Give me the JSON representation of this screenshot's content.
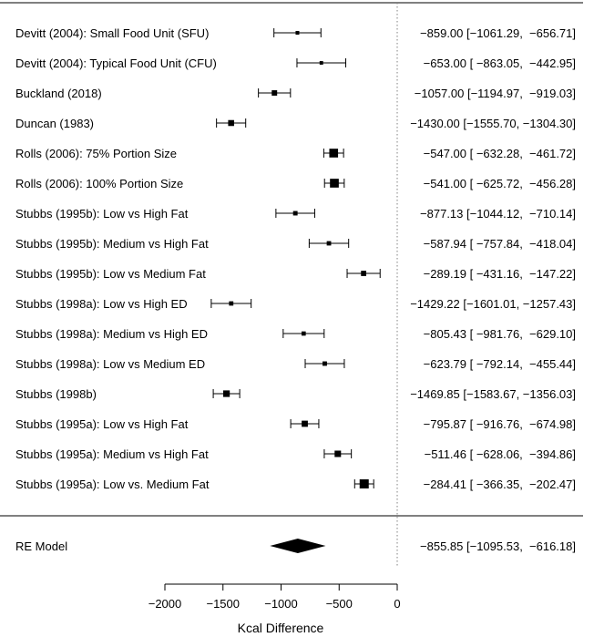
{
  "chart_data": {
    "type": "forest",
    "xlabel": "Kcal Difference",
    "xlim": [
      -2000,
      0
    ],
    "xticks": [
      -2000,
      -1500,
      -1000,
      -500,
      0
    ],
    "xtick_labels": [
      "−2000",
      "−1500",
      "−1000",
      "−500",
      "0"
    ],
    "reference_line": 0,
    "studies": [
      {
        "label": "Devitt (2004): Small Food Unit (SFU)",
        "est": -859.0,
        "lo": -1061.29,
        "hi": -656.71,
        "ci_text": "−859.00 [−1061.29,  −656.71]"
      },
      {
        "label": "Devitt (2004): Typical Food Unit (CFU)",
        "est": -653.0,
        "lo": -863.05,
        "hi": -442.95,
        "ci_text": "−653.00 [ −863.05,  −442.95]"
      },
      {
        "label": "Buckland (2018)",
        "est": -1057.0,
        "lo": -1194.97,
        "hi": -919.03,
        "ci_text": "−1057.00 [−1194.97,  −919.03]"
      },
      {
        "label": "Duncan (1983)",
        "est": -1430.0,
        "lo": -1555.7,
        "hi": -1304.3,
        "ci_text": "−1430.00 [−1555.70, −1304.30]"
      },
      {
        "label": "Rolls (2006): 75% Portion Size",
        "est": -547.0,
        "lo": -632.28,
        "hi": -461.72,
        "ci_text": "−547.00 [ −632.28,  −461.72]"
      },
      {
        "label": "Rolls (2006): 100% Portion Size",
        "est": -541.0,
        "lo": -625.72,
        "hi": -456.28,
        "ci_text": "−541.00 [ −625.72,  −456.28]"
      },
      {
        "label": "Stubbs (1995b): Low vs High Fat",
        "est": -877.13,
        "lo": -1044.12,
        "hi": -710.14,
        "ci_text": "−877.13 [−1044.12,  −710.14]"
      },
      {
        "label": "Stubbs (1995b): Medium vs High Fat",
        "est": -587.94,
        "lo": -757.84,
        "hi": -418.04,
        "ci_text": "−587.94 [ −757.84,  −418.04]"
      },
      {
        "label": "Stubbs (1995b): Low vs Medium Fat",
        "est": -289.19,
        "lo": -431.16,
        "hi": -147.22,
        "ci_text": "−289.19 [ −431.16,  −147.22]"
      },
      {
        "label": "Stubbs (1998a):  Low vs High ED",
        "est": -1429.22,
        "lo": -1601.01,
        "hi": -1257.43,
        "ci_text": "−1429.22 [−1601.01, −1257.43]"
      },
      {
        "label": "Stubbs (1998a): Medium vs High ED",
        "est": -805.43,
        "lo": -981.76,
        "hi": -629.1,
        "ci_text": "−805.43 [ −981.76,  −629.10]"
      },
      {
        "label": "Stubbs (1998a): Low vs Medium ED",
        "est": -623.79,
        "lo": -792.14,
        "hi": -455.44,
        "ci_text": "−623.79 [ −792.14,  −455.44]"
      },
      {
        "label": "Stubbs (1998b)",
        "est": -1469.85,
        "lo": -1583.67,
        "hi": -1356.03,
        "ci_text": "−1469.85 [−1583.67, −1356.03]"
      },
      {
        "label": "Stubbs (1995a): Low vs High Fat",
        "est": -795.87,
        "lo": -916.76,
        "hi": -674.98,
        "ci_text": "−795.87 [ −916.76,  −674.98]"
      },
      {
        "label": "Stubbs (1995a): Medium vs High Fat",
        "est": -511.46,
        "lo": -628.06,
        "hi": -394.86,
        "ci_text": "−511.46 [ −628.06,  −394.86]"
      },
      {
        "label": "Stubbs (1995a): Low vs. Medium Fat",
        "est": -284.41,
        "lo": -366.35,
        "hi": -202.47,
        "ci_text": "−284.41 [ −366.35,  −202.47]"
      }
    ],
    "summary": {
      "label": "RE Model",
      "est": -855.85,
      "lo": -1095.53,
      "hi": -616.18,
      "ci_text": "−855.85 [−1095.53,  −616.18]"
    },
    "colors": {
      "marker": "#000000",
      "line": "#000000",
      "reference": "#808080"
    }
  }
}
